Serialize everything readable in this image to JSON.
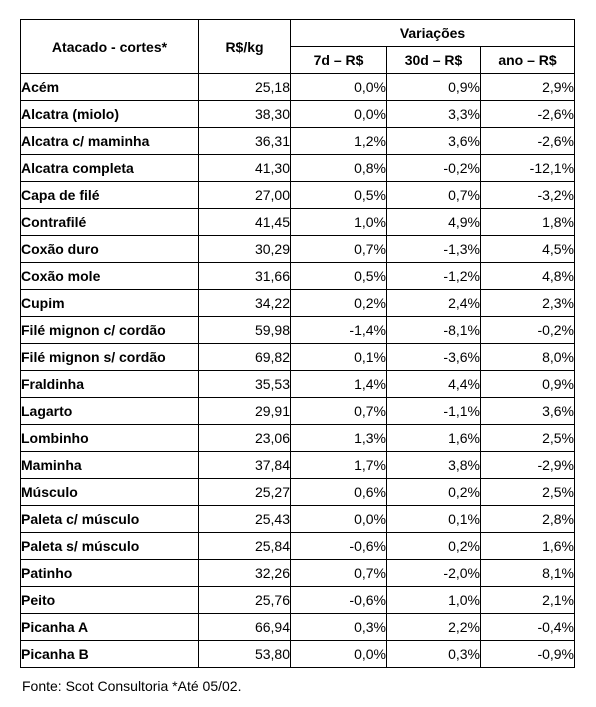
{
  "table": {
    "header": {
      "cut": "Atacado - cortes*",
      "price": "R$/kg",
      "variations": "Variações",
      "var_7d": "7d – R$",
      "var_30d": "30d – R$",
      "var_year": "ano – R$"
    },
    "rows": [
      {
        "cut": "Acém",
        "price": "25,18",
        "var_7d": "0,0%",
        "var_30d": "0,9%",
        "var_year": "2,9%"
      },
      {
        "cut": "Alcatra (miolo)",
        "price": "38,30",
        "var_7d": "0,0%",
        "var_30d": "3,3%",
        "var_year": "-2,6%"
      },
      {
        "cut": "Alcatra c/ maminha",
        "price": "36,31",
        "var_7d": "1,2%",
        "var_30d": "3,6%",
        "var_year": "-2,6%"
      },
      {
        "cut": "Alcatra completa",
        "price": "41,30",
        "var_7d": "0,8%",
        "var_30d": "-0,2%",
        "var_year": "-12,1%"
      },
      {
        "cut": "Capa de filé",
        "price": "27,00",
        "var_7d": "0,5%",
        "var_30d": "0,7%",
        "var_year": "-3,2%"
      },
      {
        "cut": "Contrafilé",
        "price": "41,45",
        "var_7d": "1,0%",
        "var_30d": "4,9%",
        "var_year": "1,8%"
      },
      {
        "cut": "Coxão duro",
        "price": "30,29",
        "var_7d": "0,7%",
        "var_30d": "-1,3%",
        "var_year": "4,5%"
      },
      {
        "cut": "Coxão mole",
        "price": "31,66",
        "var_7d": "0,5%",
        "var_30d": "-1,2%",
        "var_year": "4,8%"
      },
      {
        "cut": "Cupim",
        "price": "34,22",
        "var_7d": "0,2%",
        "var_30d": "2,4%",
        "var_year": "2,3%"
      },
      {
        "cut": "Filé mignon c/ cordão",
        "price": "59,98",
        "var_7d": "-1,4%",
        "var_30d": "-8,1%",
        "var_year": "-0,2%"
      },
      {
        "cut": "Filé mignon s/ cordão",
        "price": "69,82",
        "var_7d": "0,1%",
        "var_30d": "-3,6%",
        "var_year": "8,0%"
      },
      {
        "cut": "Fraldinha",
        "price": "35,53",
        "var_7d": "1,4%",
        "var_30d": "4,4%",
        "var_year": "0,9%"
      },
      {
        "cut": "Lagarto",
        "price": "29,91",
        "var_7d": "0,7%",
        "var_30d": "-1,1%",
        "var_year": "3,6%"
      },
      {
        "cut": "Lombinho",
        "price": "23,06",
        "var_7d": "1,3%",
        "var_30d": "1,6%",
        "var_year": "2,5%"
      },
      {
        "cut": "Maminha",
        "price": "37,84",
        "var_7d": "1,7%",
        "var_30d": "3,8%",
        "var_year": "-2,9%"
      },
      {
        "cut": "Músculo",
        "price": "25,27",
        "var_7d": "0,6%",
        "var_30d": "0,2%",
        "var_year": "2,5%"
      },
      {
        "cut": "Paleta c/ músculo",
        "price": "25,43",
        "var_7d": "0,0%",
        "var_30d": "0,1%",
        "var_year": "2,8%"
      },
      {
        "cut": "Paleta s/ músculo",
        "price": "25,84",
        "var_7d": "-0,6%",
        "var_30d": "0,2%",
        "var_year": "1,6%"
      },
      {
        "cut": "Patinho",
        "price": "32,26",
        "var_7d": "0,7%",
        "var_30d": "-2,0%",
        "var_year": "8,1%"
      },
      {
        "cut": "Peito",
        "price": "25,76",
        "var_7d": "-0,6%",
        "var_30d": "1,0%",
        "var_year": "2,1%"
      },
      {
        "cut": "Picanha A",
        "price": "66,94",
        "var_7d": "0,3%",
        "var_30d": "2,2%",
        "var_year": "-0,4%"
      },
      {
        "cut": "Picanha B",
        "price": "53,80",
        "var_7d": "0,0%",
        "var_30d": "0,3%",
        "var_year": "-0,9%"
      }
    ]
  },
  "footer": {
    "note": "Fonte: Scot Consultoria *Até 05/02."
  }
}
